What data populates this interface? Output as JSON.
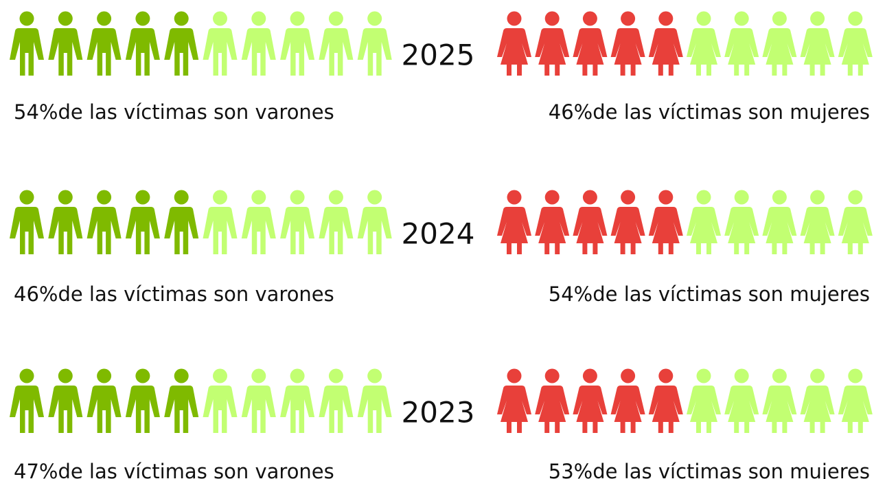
{
  "rows": [
    {
      "year": "2025",
      "men": "54%de las víctimas son varones",
      "women": "46%de las víctimas son mujeres"
    },
    {
      "year": "2024",
      "men": "46%de las víctimas son varones",
      "women": "54%de las víctimas son mujeres"
    },
    {
      "year": "2023",
      "men": "47%de las víctimas son varones",
      "women": "53%de las víctimas son mujeres"
    }
  ]
}
